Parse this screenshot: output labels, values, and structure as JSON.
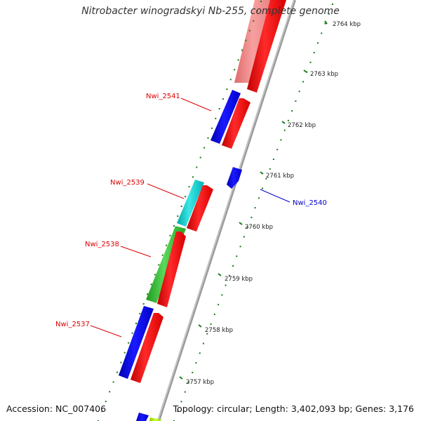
{
  "title": "Nitrobacter winogradskyi Nb-255, complete genome",
  "footer": {
    "accession": "Accession: NC_007406",
    "topology": "Topology: circular; Length: 3,402,093 bp; Genes: 3,176"
  },
  "colors": {
    "backbone": "#888888",
    "tick": "#1a7a1a",
    "reverse_label": "#dd0000",
    "forward_label": "#0000cc"
  },
  "ticks": [
    {
      "label": "2764 kbp"
    },
    {
      "label": "2763 kbp"
    },
    {
      "label": "2762 kbp"
    },
    {
      "label": "2761 kbp"
    },
    {
      "label": "2760 kbp"
    },
    {
      "label": "2759 kbp"
    },
    {
      "label": "2758 kbp"
    },
    {
      "label": "2757 kbp"
    }
  ],
  "gene_labels": [
    {
      "name": "Nwi_2541",
      "color": "#dd0000"
    },
    {
      "name": "Nwi_2539",
      "color": "#dd0000"
    },
    {
      "name": "Nwi_2538",
      "color": "#dd0000"
    },
    {
      "name": "Nwi_2537",
      "color": "#dd0000"
    },
    {
      "name": "Nwi_2540",
      "color": "#0000cc"
    }
  ]
}
